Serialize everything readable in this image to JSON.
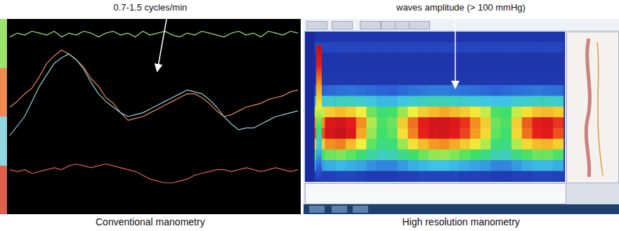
{
  "chart_data": [
    {
      "type": "line",
      "title": "Conventional manometry",
      "annotation": "0.7-1.5 cycles/min",
      "categories": [
        null,
        null,
        null,
        null,
        null,
        null,
        null,
        null,
        null,
        null,
        null,
        null,
        null,
        null,
        null,
        null,
        null,
        null,
        null,
        null,
        null,
        null,
        null,
        null,
        null,
        null,
        null,
        null,
        null,
        null,
        null,
        null,
        null,
        null,
        null,
        null,
        null,
        null,
        null,
        null
      ],
      "series": [
        {
          "color": "#9be36b",
          "values": [
            92,
            94,
            93,
            95,
            94,
            93,
            95,
            92,
            94,
            93,
            95,
            94,
            92,
            94,
            95,
            93,
            94,
            92,
            95,
            93,
            94,
            95,
            93,
            92,
            94,
            93,
            95,
            94,
            93,
            92,
            94,
            95,
            93,
            94,
            92,
            95,
            94,
            93,
            95,
            94
          ]
        },
        {
          "color": "#f08a50",
          "values": [
            55,
            58,
            62,
            65,
            71,
            78,
            82,
            85,
            83,
            80,
            76,
            70,
            66,
            60,
            57,
            52,
            48,
            49,
            50,
            52,
            54,
            56,
            58,
            60,
            62,
            62,
            60,
            57,
            53,
            50,
            51,
            53,
            55,
            56,
            57,
            59,
            60,
            61,
            63,
            64
          ]
        },
        {
          "color": "#8fd6e0",
          "values": [
            40,
            45,
            50,
            58,
            66,
            72,
            78,
            81,
            83,
            80,
            75,
            68,
            62,
            58,
            55,
            52,
            50,
            51,
            52,
            54,
            56,
            58,
            60,
            62,
            64,
            63,
            62,
            59,
            55,
            50,
            46,
            43,
            44,
            44,
            46,
            48,
            50,
            51,
            52,
            53
          ]
        },
        {
          "color": "#e0604a",
          "values": [
            22,
            21,
            22,
            20,
            21,
            22,
            23,
            22,
            24,
            25,
            24,
            23,
            24,
            25,
            24,
            23,
            22,
            21,
            19,
            17,
            16,
            15,
            15,
            16,
            17,
            19,
            20,
            21,
            22,
            22,
            21,
            22,
            23,
            22,
            21,
            22,
            23,
            22,
            21,
            22
          ]
        }
      ],
      "ylim": [
        0,
        100
      ],
      "tick_labels": false,
      "grid": false
    },
    {
      "type": "heatmap",
      "title": "High resolution manometry",
      "annotation": "waves amplitude  (> 100 mmHg)",
      "cells": [
        [
          5,
          5,
          5,
          5,
          5,
          5,
          5,
          5,
          5,
          5,
          5,
          5,
          5,
          5,
          5,
          5,
          5,
          5,
          5,
          5,
          5,
          5,
          5,
          5
        ],
        [
          12,
          12,
          12,
          12,
          12,
          12,
          12,
          12,
          12,
          12,
          12,
          12,
          12,
          12,
          12,
          12,
          12,
          12,
          12,
          12,
          12,
          12,
          12,
          12
        ],
        [
          5,
          5,
          5,
          5,
          5,
          5,
          5,
          5,
          5,
          5,
          5,
          5,
          5,
          5,
          5,
          5,
          5,
          5,
          5,
          5,
          5,
          5,
          5,
          5
        ],
        [
          5,
          5,
          5,
          5,
          5,
          5,
          5,
          5,
          5,
          5,
          5,
          5,
          5,
          5,
          5,
          5,
          5,
          5,
          5,
          5,
          5,
          5,
          5,
          5
        ],
        [
          6,
          6,
          6,
          6,
          6,
          6,
          6,
          6,
          6,
          6,
          6,
          6,
          6,
          6,
          6,
          6,
          6,
          6,
          6,
          6,
          6,
          6,
          6,
          6
        ],
        [
          22,
          24,
          25,
          26,
          25,
          24,
          23,
          22,
          24,
          26,
          27,
          28,
          28,
          27,
          26,
          25,
          24,
          23,
          24,
          25,
          26,
          27,
          26,
          25
        ],
        [
          45,
          48,
          50,
          50,
          48,
          44,
          40,
          40,
          44,
          48,
          50,
          52,
          52,
          50,
          48,
          46,
          44,
          42,
          42,
          46,
          48,
          50,
          50,
          48
        ],
        [
          80,
          95,
          100,
          95,
          85,
          70,
          62,
          65,
          75,
          85,
          95,
          100,
          105,
          100,
          95,
          88,
          80,
          66,
          64,
          80,
          90,
          98,
          100,
          96
        ],
        [
          110,
          135,
          140,
          130,
          110,
          78,
          66,
          70,
          95,
          115,
          130,
          140,
          140,
          135,
          125,
          110,
          95,
          70,
          66,
          95,
          118,
          130,
          135,
          125
        ],
        [
          120,
          140,
          145,
          135,
          105,
          75,
          64,
          68,
          90,
          112,
          128,
          138,
          140,
          132,
          122,
          108,
          92,
          68,
          64,
          92,
          115,
          128,
          132,
          120
        ],
        [
          95,
          110,
          112,
          100,
          85,
          68,
          60,
          62,
          75,
          90,
          100,
          108,
          110,
          104,
          96,
          88,
          78,
          62,
          60,
          78,
          92,
          100,
          102,
          95
        ],
        [
          65,
          70,
          72,
          68,
          62,
          55,
          50,
          52,
          58,
          64,
          70,
          74,
          75,
          72,
          68,
          64,
          60,
          52,
          50,
          60,
          66,
          70,
          70,
          66
        ],
        [
          35,
          38,
          40,
          38,
          36,
          32,
          30,
          30,
          34,
          38,
          40,
          42,
          42,
          40,
          38,
          36,
          34,
          30,
          30,
          34,
          38,
          40,
          40,
          38
        ],
        [
          10,
          10,
          12,
          12,
          10,
          8,
          8,
          8,
          10,
          10,
          12,
          12,
          12,
          12,
          10,
          10,
          10,
          8,
          8,
          10,
          10,
          12,
          12,
          10
        ]
      ],
      "colorbar_range": [
        0,
        150
      ],
      "tick_labels": false,
      "grid": false
    }
  ]
}
